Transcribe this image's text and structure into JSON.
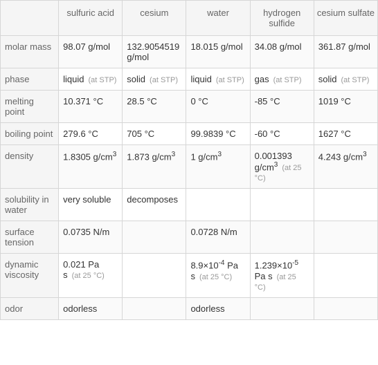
{
  "table": {
    "headers": [
      "",
      "sulfuric acid",
      "cesium",
      "water",
      "hydrogen sulfide",
      "cesium sulfate"
    ],
    "row_labels": [
      "molar mass",
      "phase",
      "melting point",
      "boiling point",
      "density",
      "solubility in water",
      "surface tension",
      "dynamic viscosity",
      "odor"
    ],
    "rows": {
      "molar_mass": {
        "sulfuric_acid": "98.07 g/mol",
        "cesium": "132.9054519 g/mol",
        "water": "18.015 g/mol",
        "hydrogen_sulfide": "34.08 g/mol",
        "cesium_sulfate": "361.87 g/mol"
      },
      "phase": {
        "sulfuric_acid": {
          "val": "liquid",
          "sub": "(at STP)"
        },
        "cesium": {
          "val": "solid",
          "sub": "(at STP)"
        },
        "water": {
          "val": "liquid",
          "sub": "(at STP)"
        },
        "hydrogen_sulfide": {
          "val": "gas",
          "sub": "(at STP)"
        },
        "cesium_sulfate": {
          "val": "solid",
          "sub": "(at STP)"
        }
      },
      "melting_point": {
        "sulfuric_acid": "10.371 °C",
        "cesium": "28.5 °C",
        "water": "0 °C",
        "hydrogen_sulfide": "-85 °C",
        "cesium_sulfate": "1019 °C"
      },
      "boiling_point": {
        "sulfuric_acid": "279.6 °C",
        "cesium": "705 °C",
        "water": "99.9839 °C",
        "hydrogen_sulfide": "-60 °C",
        "cesium_sulfate": "1627 °C"
      },
      "density": {
        "sulfuric_acid": {
          "val": "1.8305 g/cm",
          "sup": "3"
        },
        "cesium": {
          "val": "1.873 g/cm",
          "sup": "3"
        },
        "water": {
          "val": "1 g/cm",
          "sup": "3"
        },
        "hydrogen_sulfide": {
          "val": "0.001393 g/cm",
          "sup": "3",
          "sub": "(at 25 °C)"
        },
        "cesium_sulfate": {
          "val": "4.243 g/cm",
          "sup": "3"
        }
      },
      "solubility": {
        "sulfuric_acid": "very soluble",
        "cesium": "decomposes",
        "water": "",
        "hydrogen_sulfide": "",
        "cesium_sulfate": ""
      },
      "surface_tension": {
        "sulfuric_acid": "0.0735 N/m",
        "cesium": "",
        "water": "0.0728 N/m",
        "hydrogen_sulfide": "",
        "cesium_sulfate": ""
      },
      "dynamic_viscosity": {
        "sulfuric_acid": {
          "val": "0.021 Pa s",
          "sub": "(at 25 °C)"
        },
        "cesium": "",
        "water": {
          "pre": "8.9×10",
          "sup": "-4",
          "post": " Pa s",
          "sub": "(at 25 °C)"
        },
        "hydrogen_sulfide": {
          "pre": "1.239×10",
          "sup": "-5",
          "post": " Pa s",
          "sub": "(at 25 °C)"
        },
        "cesium_sulfate": ""
      },
      "odor": {
        "sulfuric_acid": "odorless",
        "cesium": "",
        "water": "odorless",
        "hydrogen_sulfide": "",
        "cesium_sulfate": ""
      }
    },
    "colors": {
      "border": "#d6d6d6",
      "header_bg": "#f5f5f5",
      "text": "#333",
      "muted": "#666",
      "sub_text": "#999"
    }
  }
}
